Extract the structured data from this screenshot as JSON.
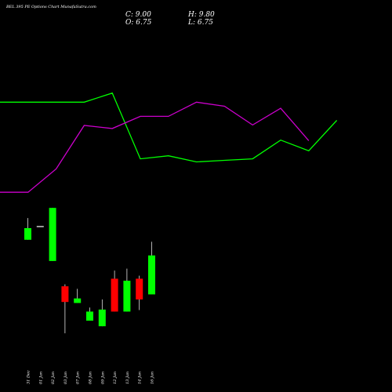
{
  "title": "BEL 395 PE Options Chart MunafaSutra.com",
  "ohlc": {
    "close_label": "C: 9.00",
    "high_label": "H: 9.80",
    "open_label": "O: 6.75",
    "low_label": "L: 6.75"
  },
  "colors": {
    "background": "#000000",
    "up_candle": "#00ff00",
    "down_candle": "#ff0000",
    "neutral_candle": "#ffffff",
    "upper_line": "#00ff00",
    "lower_line": "#cc00cc",
    "text": "#ffffff"
  },
  "chart_data": {
    "type": "candlestick",
    "categories": [
      "31 Dec",
      "01 Jan",
      "02 Jan",
      "03 Jan",
      "07 Jan",
      "08 Jan",
      "09 Jan",
      "12 Jan",
      "13 Jan",
      "14 Jan",
      "16 Jan"
    ],
    "candles": [
      {
        "open": 5.4,
        "close": 6.55,
        "high": 7.55,
        "low": 5.4,
        "dir": "up"
      },
      {
        "open": 6.75,
        "close": 6.75,
        "high": 6.75,
        "low": 6.75,
        "dir": "flat"
      },
      {
        "open": 3.3,
        "close": 8.55,
        "high": 8.55,
        "low": 3.3,
        "dir": "up"
      },
      {
        "open": 0.8,
        "close": -0.75,
        "high": 1.0,
        "low": -3.85,
        "dir": "down"
      },
      {
        "open": -0.4,
        "close": -0.85,
        "high": 0.55,
        "low": -0.85,
        "dir": "up"
      },
      {
        "open": -1.7,
        "close": -2.6,
        "high": -1.3,
        "low": -2.6,
        "dir": "up"
      },
      {
        "open": -1.5,
        "close": -3.15,
        "high": -0.5,
        "low": -3.15,
        "dir": "up"
      },
      {
        "open": 1.55,
        "close": -1.7,
        "high": 2.35,
        "low": -1.7,
        "dir": "down"
      },
      {
        "open": -1.7,
        "close": 1.35,
        "high": 2.55,
        "low": -1.7,
        "dir": "up"
      },
      {
        "open": 1.55,
        "close": -0.5,
        "high": 1.85,
        "low": -1.55,
        "dir": "down"
      },
      {
        "open": 0.0,
        "close": 3.85,
        "high": 5.2,
        "low": 0.0,
        "dir": "up"
      }
    ],
    "upper_band": [
      19.0,
      19.0,
      19.0,
      19.0,
      19.9,
      13.4,
      13.7,
      13.1,
      13.25,
      13.4,
      15.25,
      14.2,
      17.2
    ],
    "lower_band": [
      10.1,
      10.1,
      12.4,
      16.7,
      16.4,
      17.6,
      17.6,
      19.0,
      18.6,
      16.75,
      18.4,
      15.2
    ],
    "ylim": [
      -5,
      26
    ]
  }
}
